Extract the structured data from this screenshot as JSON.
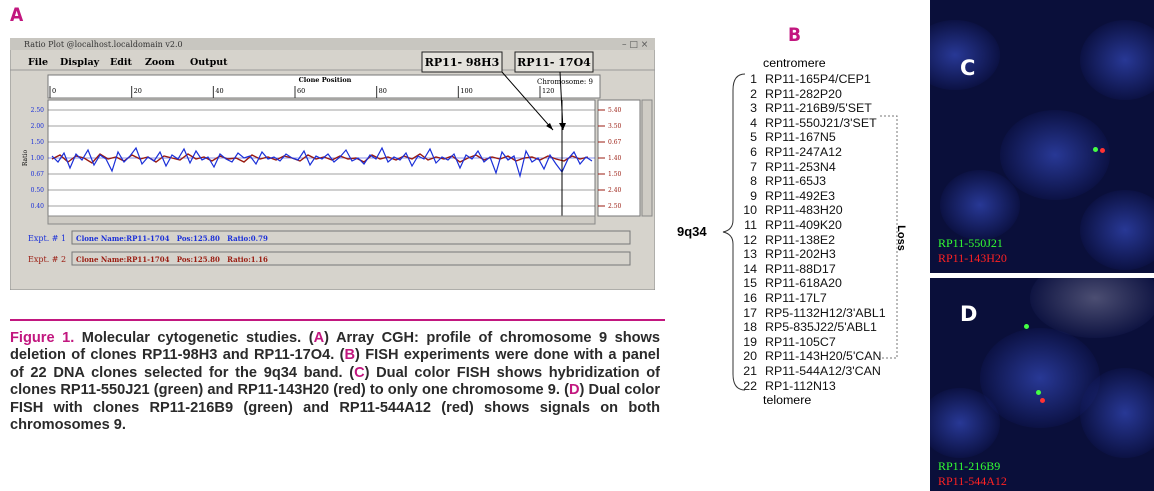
{
  "panel_a": {
    "label": "A",
    "window_title": "Ratio Plot @localhost.localdomain  v2.0",
    "menu": [
      "File",
      "Display",
      "Edit",
      "Zoom",
      "Output"
    ],
    "clone_boxes": [
      "RP11- 98H3",
      "RP11- 17O4"
    ],
    "ruler_title": "Clone Position",
    "chromosome": "Chromosome: 9",
    "x_ticks": [
      0,
      20,
      40,
      60,
      80,
      100,
      120
    ],
    "y_label": "Ratio",
    "y_labels_left": [
      "2.50",
      "2.00",
      "1.50",
      "1.00",
      "0.67",
      "0.50",
      "0.40"
    ],
    "y_labels_right": [
      "5.40",
      "3.50",
      "0.67",
      "1.40",
      "1.50",
      "2.40",
      "2.50"
    ],
    "experiments": [
      {
        "label": "Expt. # 1",
        "info": "Clone Name:RP11-1704   Pos:125.80   Ratio:0.79"
      },
      {
        "label": "Expt. # 2",
        "info": "Clone Name:RP11-1704   Pos:125.80   Ratio:1.16"
      }
    ]
  },
  "caption": [
    {
      "text": "Figure 1.",
      "hl": true
    },
    {
      "text": " Molecular cytogenetic studies. (",
      "hl": false
    },
    {
      "text": "A",
      "hl": true
    },
    {
      "text": ") Array CGH: profile of chromosome 9 shows deletion of clones RP11-98H3 and RP11-17O4. (",
      "hl": false
    },
    {
      "text": "B",
      "hl": true
    },
    {
      "text": ") FISH experiments were done with a panel of 22 DNA clones selected for the 9q34 band. (",
      "hl": false
    },
    {
      "text": "C",
      "hl": true
    },
    {
      "text": ") Dual color FISH shows hybridization of clones RP11-550J21 (green) and RP11-143H20 (red) to only one chromosome 9. (",
      "hl": false
    },
    {
      "text": "D",
      "hl": true
    },
    {
      "text": ") Dual color FISH with clones RP11-216B9 (green) and RP11-544A12 (red) shows signals on both chromosomes 9.",
      "hl": false
    }
  ],
  "panel_b": {
    "label": "B",
    "top": "centromere",
    "bottom": "telomere",
    "band": "9q34",
    "loss": "Loss",
    "clones": [
      {
        "number": 1,
        "name": "RP11-165P4/CEP1"
      },
      {
        "number": 2,
        "name": "RP11-282P20"
      },
      {
        "number": 3,
        "name": "RP11-216B9/5'SET"
      },
      {
        "number": 4,
        "name": "RP11-550J21/3'SET"
      },
      {
        "number": 5,
        "name": "RP11-167N5"
      },
      {
        "number": 6,
        "name": "RP11-247A12"
      },
      {
        "number": 7,
        "name": "RP11-253N4"
      },
      {
        "number": 8,
        "name": "RP11-65J3"
      },
      {
        "number": 9,
        "name": "RP11-492E3"
      },
      {
        "number": 10,
        "name": "RP11-483H20"
      },
      {
        "number": 11,
        "name": "RP11-409K20"
      },
      {
        "number": 12,
        "name": "RP11-138E2"
      },
      {
        "number": 13,
        "name": "RP11-202H3"
      },
      {
        "number": 14,
        "name": "RP11-88D17"
      },
      {
        "number": 15,
        "name": "RP11-618A20"
      },
      {
        "number": 16,
        "name": "RP11-17L7"
      },
      {
        "number": 17,
        "name": "RP5-1132H12/3'ABL1"
      },
      {
        "number": 18,
        "name": "RP5-835J22/5'ABL1"
      },
      {
        "number": 19,
        "name": "RP11-105C7"
      },
      {
        "number": 20,
        "name": "RP11-143H20/5'CAN"
      },
      {
        "number": 21,
        "name": "RP11-544A12/3'CAN"
      },
      {
        "number": 22,
        "name": "RP1-112N13"
      }
    ]
  },
  "panel_c": {
    "label": "C",
    "probes": [
      "RP11-550J21",
      "RP11-143H20"
    ]
  },
  "panel_d": {
    "label": "D",
    "probes": [
      "RP11-216B9",
      "RP11-544A12"
    ]
  }
}
